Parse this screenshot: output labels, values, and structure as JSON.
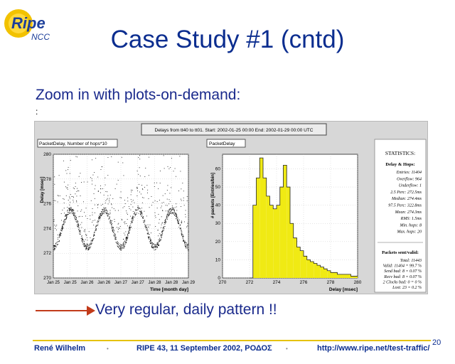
{
  "logo": {
    "main": "Ripe",
    "sub": "NCC"
  },
  "slide": {
    "title": "Case Study #1  (cntd)",
    "subtitle": "Zoom in with plots-on-demand:",
    "bullet_dot": ":",
    "conclusion": "Very regular, daily pattern !!"
  },
  "panel": {
    "header": "Delays from tt40 to tt01.  Start: 2002-01-25 00:00   End: 2002-01-29 00:00 UTC"
  },
  "chart_data": [
    {
      "type": "scatter",
      "title": "PacketDelay, Number of hops*10",
      "xlabel": "Time [month day]",
      "ylabel": "Delay [msec]",
      "x_ticks": [
        "Jan 25",
        "Jan 25",
        "Jan 26",
        "Jan 26",
        "Jan 27",
        "Jan 27",
        "Jan 28",
        "Jan 28",
        "Jan 29"
      ],
      "y_ticks": [
        270,
        272,
        274,
        276,
        278,
        280
      ],
      "ylim": [
        270,
        280
      ],
      "xlim_days": [
        25,
        29
      ],
      "pattern": "daily sinusoid oscillating between about 272.5 and 275.5 msec with sparse scatter up to 280",
      "cycles": 4
    },
    {
      "type": "bar",
      "title": "PacketDelay",
      "xlabel": "Delay [msec]",
      "ylabel": "# packets [Entries/bin]",
      "x_ticks": [
        270,
        272,
        274,
        276,
        278,
        280
      ],
      "y_ticks": [
        0,
        10,
        20,
        30,
        40,
        50,
        60
      ],
      "xlim": [
        270,
        280
      ],
      "ylim": [
        0,
        68
      ],
      "x": [
        272.0,
        272.25,
        272.5,
        272.75,
        273.0,
        273.25,
        273.5,
        273.75,
        274.0,
        274.25,
        274.5,
        274.75,
        275.0,
        275.25,
        275.5,
        275.75,
        276.0,
        276.25,
        276.5,
        276.75,
        277.0,
        277.25,
        277.5,
        277.75,
        278.0,
        278.5,
        279.0,
        279.5
      ],
      "values": [
        0,
        40,
        55,
        66,
        55,
        45,
        40,
        38,
        40,
        50,
        62,
        50,
        30,
        22,
        17,
        15,
        12,
        10,
        9,
        8,
        7,
        6,
        5,
        4,
        3,
        2,
        2,
        1
      ]
    }
  ],
  "statistics": {
    "heading": "STATISTICS:",
    "section1": "Delay & Hops:",
    "lines1": [
      "Entries: 11404",
      "Overflow: 964",
      "Underflow: 1",
      "2.5 Perc:   272.5ms",
      "Median:   274.4ms",
      "97.5 Perc:  322.8ms",
      "Mean:   274.3ms",
      "RMS:      1.5ms",
      "Min. hops: 8",
      "Max. hops: 20"
    ],
    "section2": "Packets sent/valid:",
    "lines2": [
      "Total: 11443",
      "Valid: 11404 = 99.7 %",
      "Send bad: 8 = 0.07 %",
      "Recv bad: 8 = 0.07 %",
      "2 Clocks bad: 0 = 0 %",
      "Lost: 23 = 0.2 %"
    ]
  },
  "footer": {
    "author": "René Wilhelm",
    "event": "RIPE 43, 11 September 2002, ΡΟΔΟΣ",
    "url": "http://www.ripe.net/test-traffic/",
    "page": "20"
  }
}
